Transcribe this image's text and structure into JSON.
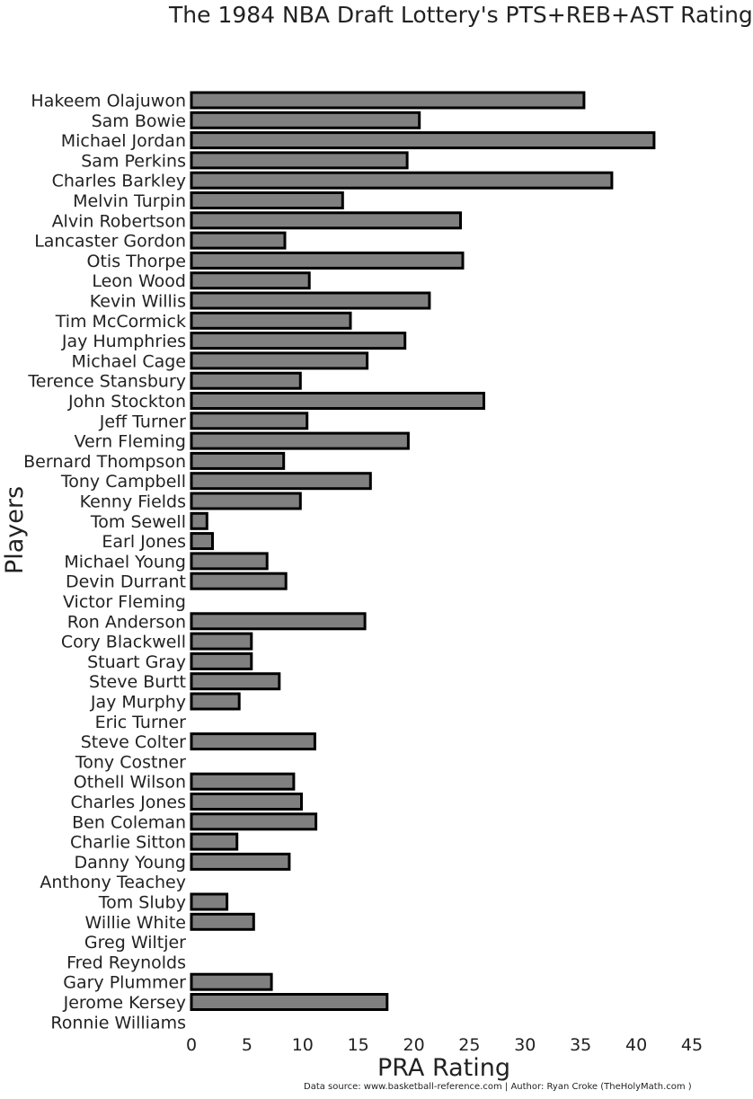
{
  "chart_data": {
    "type": "bar",
    "orientation": "horizontal",
    "title": "The 1984 NBA Draft Lottery's PTS+REB+AST Rating",
    "xlabel": "PRA Rating",
    "ylabel": "Players",
    "xlim": [
      0,
      45
    ],
    "xticks": [
      0,
      5,
      10,
      15,
      20,
      25,
      30,
      35,
      40,
      45
    ],
    "grid": false,
    "bar_color": "#808080",
    "edge_color": "#000000",
    "categories": [
      "Hakeem Olajuwon",
      "Sam Bowie",
      "Michael Jordan",
      "Sam Perkins",
      "Charles Barkley",
      "Melvin Turpin",
      "Alvin Robertson",
      "Lancaster Gordon",
      "Otis Thorpe",
      "Leon Wood",
      "Kevin Willis",
      "Tim McCormick",
      "Jay Humphries",
      "Michael Cage",
      "Terence Stansbury",
      "John Stockton",
      "Jeff Turner",
      "Vern Fleming",
      "Bernard Thompson",
      "Tony Campbell",
      "Kenny Fields",
      "Tom Sewell",
      "Earl Jones",
      "Michael Young",
      "Devin Durrant",
      "Victor Fleming",
      "Ron Anderson",
      "Cory Blackwell",
      "Stuart Gray",
      "Steve Burtt",
      "Jay Murphy",
      "Eric Turner",
      "Steve Colter",
      "Tony Costner",
      "Othell Wilson",
      "Charles Jones",
      "Ben Coleman",
      "Charlie Sitton",
      "Danny Young",
      "Anthony Teachey",
      "Tom Sluby",
      "Willie White",
      "Greg Wiltjer",
      "Fred Reynolds",
      "Gary Plummer",
      "Jerome Kersey",
      "Ronnie Williams"
    ],
    "values": [
      35.3,
      20.5,
      41.6,
      19.4,
      37.8,
      13.6,
      24.2,
      8.4,
      24.4,
      10.6,
      21.4,
      14.3,
      19.2,
      15.8,
      9.8,
      26.3,
      10.4,
      19.5,
      8.3,
      16.1,
      9.8,
      1.4,
      1.9,
      6.8,
      8.5,
      0,
      15.6,
      5.4,
      5.4,
      7.9,
      4.3,
      0,
      11.1,
      0,
      9.2,
      9.9,
      11.2,
      4.1,
      8.8,
      0,
      3.2,
      5.6,
      0,
      0,
      7.2,
      17.6,
      0
    ]
  },
  "footer": {
    "source": "Data source: www.basketball-reference.com | Author: Ryan Croke (TheHolyMath.com )"
  }
}
